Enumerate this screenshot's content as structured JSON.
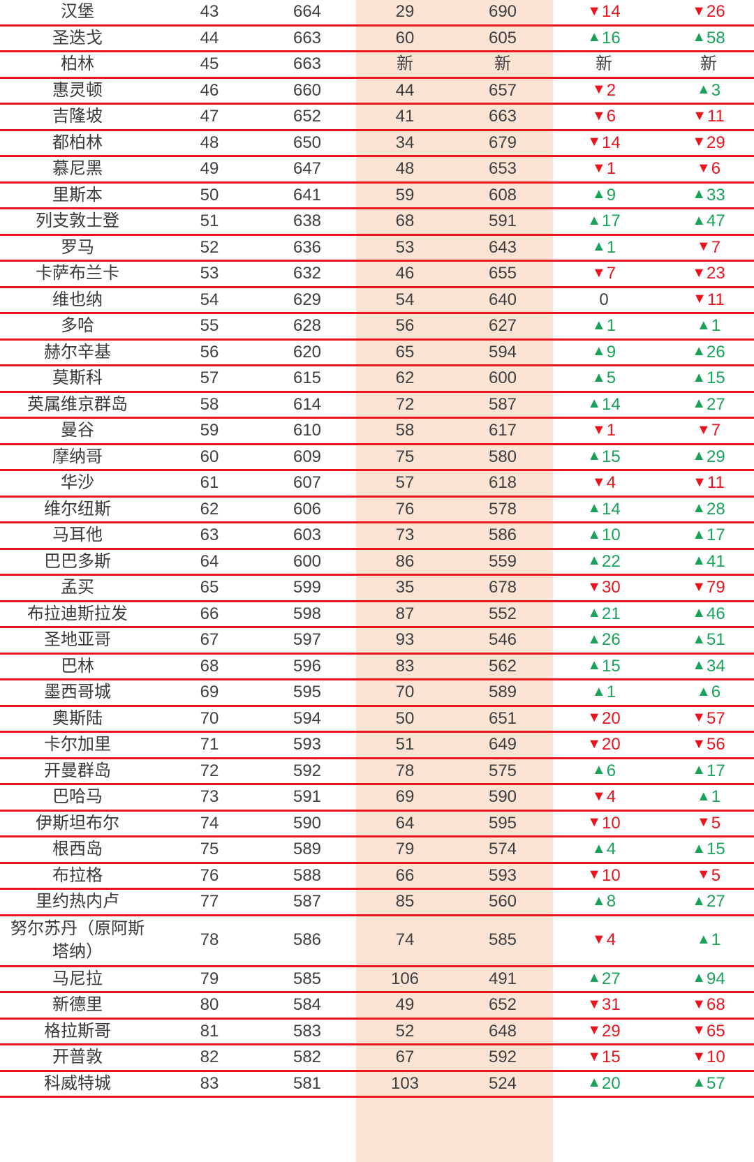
{
  "columns": [
    "city",
    "rank",
    "score",
    "prev_rank",
    "prev_score",
    "rank_change",
    "score_change"
  ],
  "colors": {
    "up": "#19a35a",
    "down": "#e8141e",
    "rule": "#e8141e",
    "highlight_band": "#fbe4d3"
  },
  "icons": {
    "up": "up-triangle-icon",
    "down": "down-triangle-icon"
  },
  "rows": [
    {
      "city": "汉堡",
      "rank": "43",
      "score": "664",
      "prev_rank": "29",
      "prev_score": "690",
      "rank_change": {
        "dir": "down",
        "text": "14"
      },
      "score_change": {
        "dir": "down",
        "text": "26"
      }
    },
    {
      "city": "圣迭戈",
      "rank": "44",
      "score": "663",
      "prev_rank": "60",
      "prev_score": "605",
      "rank_change": {
        "dir": "up",
        "text": "16"
      },
      "score_change": {
        "dir": "up",
        "text": "58"
      }
    },
    {
      "city": "柏林",
      "rank": "45",
      "score": "663",
      "prev_rank": "新",
      "prev_score": "新",
      "rank_change": {
        "dir": "none",
        "text": "新"
      },
      "score_change": {
        "dir": "none",
        "text": "新"
      }
    },
    {
      "city": "惠灵顿",
      "rank": "46",
      "score": "660",
      "prev_rank": "44",
      "prev_score": "657",
      "rank_change": {
        "dir": "down",
        "text": "2"
      },
      "score_change": {
        "dir": "up",
        "text": "3"
      }
    },
    {
      "city": "吉隆坡",
      "rank": "47",
      "score": "652",
      "prev_rank": "41",
      "prev_score": "663",
      "rank_change": {
        "dir": "down",
        "text": "6"
      },
      "score_change": {
        "dir": "down",
        "text": "11"
      }
    },
    {
      "city": "都柏林",
      "rank": "48",
      "score": "650",
      "prev_rank": "34",
      "prev_score": "679",
      "rank_change": {
        "dir": "down",
        "text": "14"
      },
      "score_change": {
        "dir": "down",
        "text": "29"
      }
    },
    {
      "city": "慕尼黑",
      "rank": "49",
      "score": "647",
      "prev_rank": "48",
      "prev_score": "653",
      "rank_change": {
        "dir": "down",
        "text": "1"
      },
      "score_change": {
        "dir": "down",
        "text": "6"
      }
    },
    {
      "city": "里斯本",
      "rank": "50",
      "score": "641",
      "prev_rank": "59",
      "prev_score": "608",
      "rank_change": {
        "dir": "up",
        "text": "9"
      },
      "score_change": {
        "dir": "up",
        "text": "33"
      }
    },
    {
      "city": "列支敦士登",
      "rank": "51",
      "score": "638",
      "prev_rank": "68",
      "prev_score": "591",
      "rank_change": {
        "dir": "up",
        "text": "17"
      },
      "score_change": {
        "dir": "up",
        "text": "47"
      }
    },
    {
      "city": "罗马",
      "rank": "52",
      "score": "636",
      "prev_rank": "53",
      "prev_score": "643",
      "rank_change": {
        "dir": "up",
        "text": "1"
      },
      "score_change": {
        "dir": "down",
        "text": "7"
      }
    },
    {
      "city": "卡萨布兰卡",
      "rank": "53",
      "score": "632",
      "prev_rank": "46",
      "prev_score": "655",
      "rank_change": {
        "dir": "down",
        "text": "7"
      },
      "score_change": {
        "dir": "down",
        "text": "23"
      }
    },
    {
      "city": "维也纳",
      "rank": "54",
      "score": "629",
      "prev_rank": "54",
      "prev_score": "640",
      "rank_change": {
        "dir": "none",
        "text": "0"
      },
      "score_change": {
        "dir": "down",
        "text": "11"
      }
    },
    {
      "city": "多哈",
      "rank": "55",
      "score": "628",
      "prev_rank": "56",
      "prev_score": "627",
      "rank_change": {
        "dir": "up",
        "text": "1"
      },
      "score_change": {
        "dir": "up",
        "text": "1"
      }
    },
    {
      "city": "赫尔辛基",
      "rank": "56",
      "score": "620",
      "prev_rank": "65",
      "prev_score": "594",
      "rank_change": {
        "dir": "up",
        "text": "9"
      },
      "score_change": {
        "dir": "up",
        "text": "26"
      }
    },
    {
      "city": "莫斯科",
      "rank": "57",
      "score": "615",
      "prev_rank": "62",
      "prev_score": "600",
      "rank_change": {
        "dir": "up",
        "text": "5"
      },
      "score_change": {
        "dir": "up",
        "text": "15"
      }
    },
    {
      "city": "英属维京群岛",
      "rank": "58",
      "score": "614",
      "prev_rank": "72",
      "prev_score": "587",
      "rank_change": {
        "dir": "up",
        "text": "14"
      },
      "score_change": {
        "dir": "up",
        "text": "27"
      }
    },
    {
      "city": "曼谷",
      "rank": "59",
      "score": "610",
      "prev_rank": "58",
      "prev_score": "617",
      "rank_change": {
        "dir": "down",
        "text": "1"
      },
      "score_change": {
        "dir": "down",
        "text": "7"
      }
    },
    {
      "city": "摩纳哥",
      "rank": "60",
      "score": "609",
      "prev_rank": "75",
      "prev_score": "580",
      "rank_change": {
        "dir": "up",
        "text": "15"
      },
      "score_change": {
        "dir": "up",
        "text": "29"
      }
    },
    {
      "city": "华沙",
      "rank": "61",
      "score": "607",
      "prev_rank": "57",
      "prev_score": "618",
      "rank_change": {
        "dir": "down",
        "text": "4"
      },
      "score_change": {
        "dir": "down",
        "text": "11"
      }
    },
    {
      "city": "维尔纽斯",
      "rank": "62",
      "score": "606",
      "prev_rank": "76",
      "prev_score": "578",
      "rank_change": {
        "dir": "up",
        "text": "14"
      },
      "score_change": {
        "dir": "up",
        "text": "28"
      }
    },
    {
      "city": "马耳他",
      "rank": "63",
      "score": "603",
      "prev_rank": "73",
      "prev_score": "586",
      "rank_change": {
        "dir": "up",
        "text": "10"
      },
      "score_change": {
        "dir": "up",
        "text": "17"
      }
    },
    {
      "city": "巴巴多斯",
      "rank": "64",
      "score": "600",
      "prev_rank": "86",
      "prev_score": "559",
      "rank_change": {
        "dir": "up",
        "text": "22"
      },
      "score_change": {
        "dir": "up",
        "text": "41"
      }
    },
    {
      "city": "孟买",
      "rank": "65",
      "score": "599",
      "prev_rank": "35",
      "prev_score": "678",
      "rank_change": {
        "dir": "down",
        "text": "30"
      },
      "score_change": {
        "dir": "down",
        "text": "79"
      }
    },
    {
      "city": "布拉迪斯拉发",
      "rank": "66",
      "score": "598",
      "prev_rank": "87",
      "prev_score": "552",
      "rank_change": {
        "dir": "up",
        "text": "21"
      },
      "score_change": {
        "dir": "up",
        "text": "46"
      }
    },
    {
      "city": "圣地亚哥",
      "rank": "67",
      "score": "597",
      "prev_rank": "93",
      "prev_score": "546",
      "rank_change": {
        "dir": "up",
        "text": "26"
      },
      "score_change": {
        "dir": "up",
        "text": "51"
      }
    },
    {
      "city": "巴林",
      "rank": "68",
      "score": "596",
      "prev_rank": "83",
      "prev_score": "562",
      "rank_change": {
        "dir": "up",
        "text": "15"
      },
      "score_change": {
        "dir": "up",
        "text": "34"
      }
    },
    {
      "city": "墨西哥城",
      "rank": "69",
      "score": "595",
      "prev_rank": "70",
      "prev_score": "589",
      "rank_change": {
        "dir": "up",
        "text": "1"
      },
      "score_change": {
        "dir": "up",
        "text": "6"
      }
    },
    {
      "city": "奥斯陆",
      "rank": "70",
      "score": "594",
      "prev_rank": "50",
      "prev_score": "651",
      "rank_change": {
        "dir": "down",
        "text": "20"
      },
      "score_change": {
        "dir": "down",
        "text": "57"
      }
    },
    {
      "city": "卡尔加里",
      "rank": "71",
      "score": "593",
      "prev_rank": "51",
      "prev_score": "649",
      "rank_change": {
        "dir": "down",
        "text": "20"
      },
      "score_change": {
        "dir": "down",
        "text": "56"
      }
    },
    {
      "city": "开曼群岛",
      "rank": "72",
      "score": "592",
      "prev_rank": "78",
      "prev_score": "575",
      "rank_change": {
        "dir": "up",
        "text": "6"
      },
      "score_change": {
        "dir": "up",
        "text": "17"
      }
    },
    {
      "city": "巴哈马",
      "rank": "73",
      "score": "591",
      "prev_rank": "69",
      "prev_score": "590",
      "rank_change": {
        "dir": "down",
        "text": "4"
      },
      "score_change": {
        "dir": "up",
        "text": "1"
      }
    },
    {
      "city": "伊斯坦布尔",
      "rank": "74",
      "score": "590",
      "prev_rank": "64",
      "prev_score": "595",
      "rank_change": {
        "dir": "down",
        "text": "10"
      },
      "score_change": {
        "dir": "down",
        "text": "5"
      }
    },
    {
      "city": "根西岛",
      "rank": "75",
      "score": "589",
      "prev_rank": "79",
      "prev_score": "574",
      "rank_change": {
        "dir": "up",
        "text": "4"
      },
      "score_change": {
        "dir": "up",
        "text": "15"
      }
    },
    {
      "city": "布拉格",
      "rank": "76",
      "score": "588",
      "prev_rank": "66",
      "prev_score": "593",
      "rank_change": {
        "dir": "down",
        "text": "10"
      },
      "score_change": {
        "dir": "down",
        "text": "5"
      }
    },
    {
      "city": "里约热内卢",
      "rank": "77",
      "score": "587",
      "prev_rank": "85",
      "prev_score": "560",
      "rank_change": {
        "dir": "up",
        "text": "8"
      },
      "score_change": {
        "dir": "up",
        "text": "27"
      }
    },
    {
      "city": "努尔苏丹（原阿斯塔纳）",
      "rank": "78",
      "score": "586",
      "prev_rank": "74",
      "prev_score": "585",
      "rank_change": {
        "dir": "down",
        "text": "4"
      },
      "score_change": {
        "dir": "up",
        "text": "1"
      }
    },
    {
      "city": "马尼拉",
      "rank": "79",
      "score": "585",
      "prev_rank": "106",
      "prev_score": "491",
      "rank_change": {
        "dir": "up",
        "text": "27"
      },
      "score_change": {
        "dir": "up",
        "text": "94"
      }
    },
    {
      "city": "新德里",
      "rank": "80",
      "score": "584",
      "prev_rank": "49",
      "prev_score": "652",
      "rank_change": {
        "dir": "down",
        "text": "31"
      },
      "score_change": {
        "dir": "down",
        "text": "68"
      }
    },
    {
      "city": "格拉斯哥",
      "rank": "81",
      "score": "583",
      "prev_rank": "52",
      "prev_score": "648",
      "rank_change": {
        "dir": "down",
        "text": "29"
      },
      "score_change": {
        "dir": "down",
        "text": "65"
      }
    },
    {
      "city": "开普敦",
      "rank": "82",
      "score": "582",
      "prev_rank": "67",
      "prev_score": "592",
      "rank_change": {
        "dir": "down",
        "text": "15"
      },
      "score_change": {
        "dir": "down",
        "text": "10"
      }
    },
    {
      "city": "科威特城",
      "rank": "83",
      "score": "581",
      "prev_rank": "103",
      "prev_score": "524",
      "rank_change": {
        "dir": "up",
        "text": "20"
      },
      "score_change": {
        "dir": "up",
        "text": "57"
      }
    }
  ]
}
